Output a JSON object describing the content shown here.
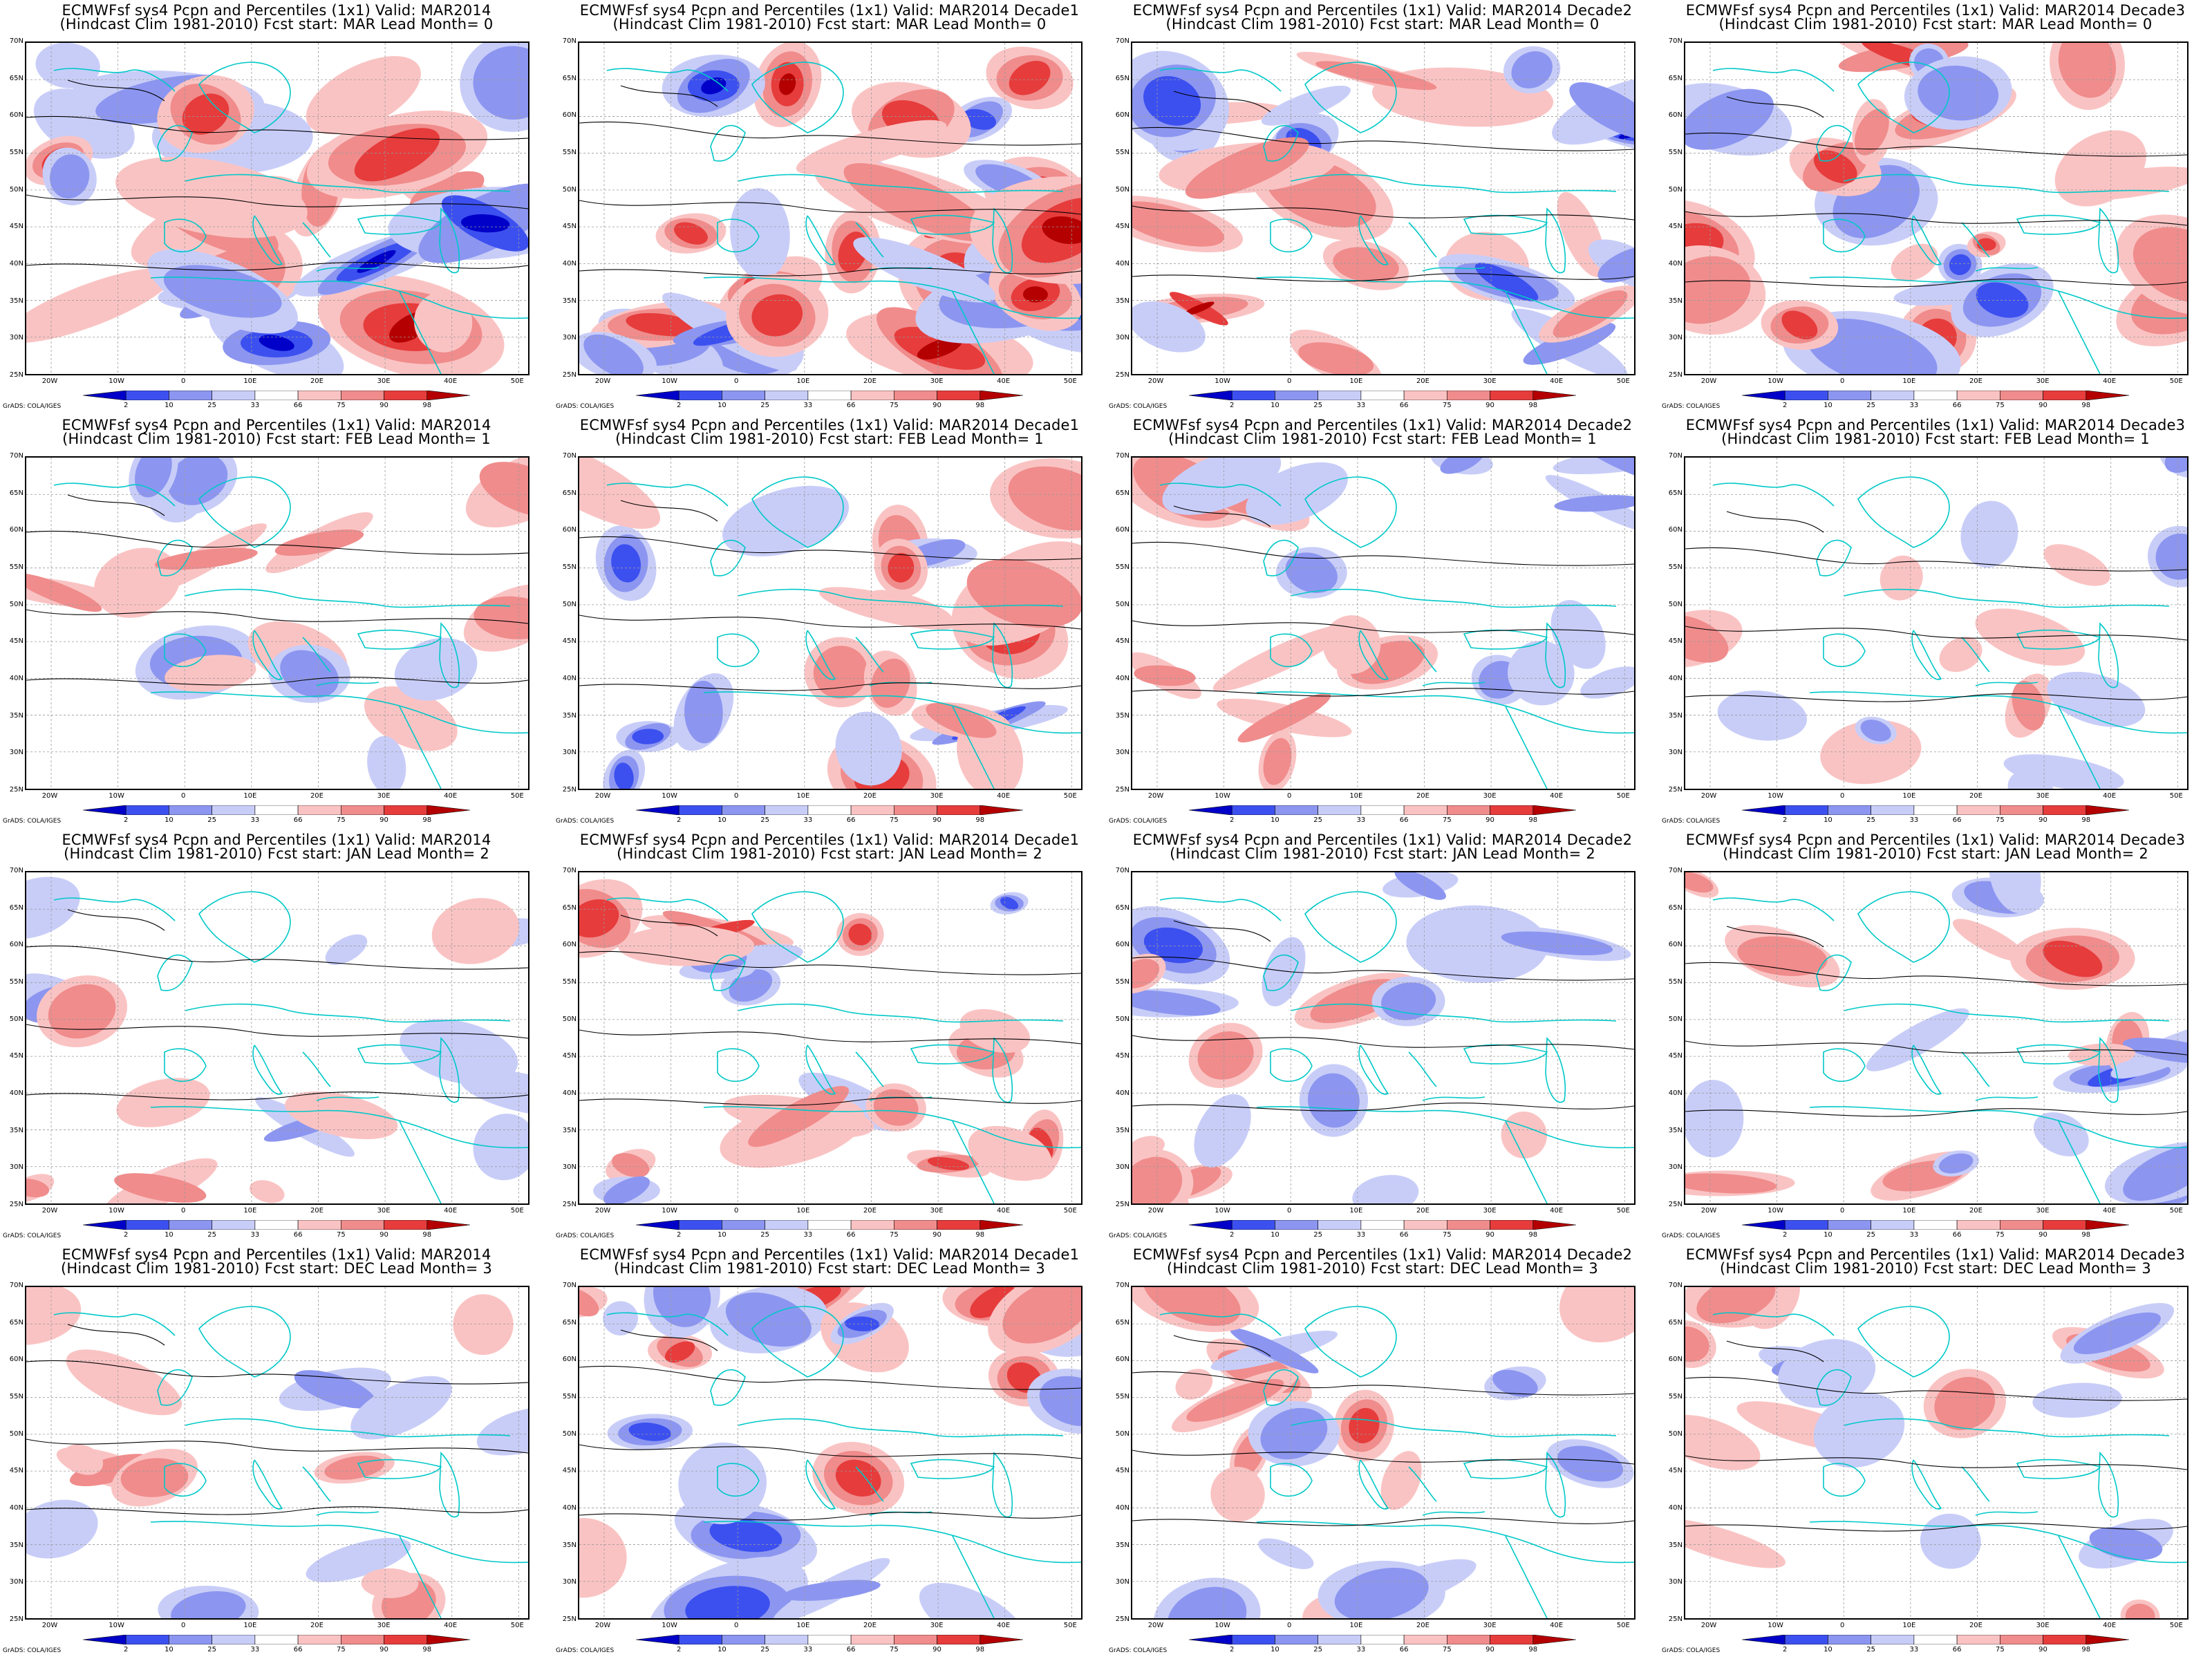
{
  "layout_rows": 4,
  "layout_cols": 4,
  "panels": [
    {
      "title1": "ECMWFsf sys4  Pcpn and Percentiles (1x1) Valid: MAR2014",
      "title2": "(Hindcast Clim 1981-2010) Fcst start: MAR   Lead Month= 0"
    },
    {
      "title1": "ECMWFsf sys4  Pcpn and Percentiles (1x1) Valid: MAR2014 Decade1",
      "title2": "(Hindcast Clim 1981-2010) Fcst start: MAR   Lead Month= 0"
    },
    {
      "title1": "ECMWFsf sys4  Pcpn and Percentiles (1x1) Valid: MAR2014 Decade2",
      "title2": "(Hindcast Clim 1981-2010) Fcst start: MAR   Lead Month= 0"
    },
    {
      "title1": "ECMWFsf sys4  Pcpn and Percentiles (1x1) Valid: MAR2014 Decade3",
      "title2": "(Hindcast Clim 1981-2010) Fcst start: MAR   Lead Month= 0"
    },
    {
      "title1": "ECMWFsf sys4  Pcpn and Percentiles (1x1) Valid: MAR2014",
      "title2": "(Hindcast Clim 1981-2010) Fcst start: FEB   Lead Month= 1"
    },
    {
      "title1": "ECMWFsf sys4  Pcpn and Percentiles (1x1) Valid: MAR2014 Decade1",
      "title2": "(Hindcast Clim 1981-2010) Fcst start: FEB   Lead Month= 1"
    },
    {
      "title1": "ECMWFsf sys4  Pcpn and Percentiles (1x1) Valid: MAR2014 Decade2",
      "title2": "(Hindcast Clim 1981-2010) Fcst start: FEB   Lead Month= 1"
    },
    {
      "title1": "ECMWFsf sys4  Pcpn and Percentiles (1x1) Valid: MAR2014 Decade3",
      "title2": "(Hindcast Clim 1981-2010) Fcst start: FEB   Lead Month= 1"
    },
    {
      "title1": "ECMWFsf sys4  Pcpn and Percentiles (1x1) Valid: MAR2014",
      "title2": "(Hindcast Clim 1981-2010) Fcst start: JAN   Lead Month= 2"
    },
    {
      "title1": "ECMWFsf sys4  Pcpn and Percentiles (1x1) Valid: MAR2014 Decade1",
      "title2": "(Hindcast Clim 1981-2010) Fcst start: JAN   Lead Month= 2"
    },
    {
      "title1": "ECMWFsf sys4  Pcpn and Percentiles (1x1) Valid: MAR2014 Decade2",
      "title2": "(Hindcast Clim 1981-2010) Fcst start: JAN   Lead Month= 2"
    },
    {
      "title1": "ECMWFsf sys4  Pcpn and Percentiles (1x1) Valid: MAR2014 Decade3",
      "title2": "(Hindcast Clim 1981-2010) Fcst start: JAN   Lead Month= 2"
    },
    {
      "title1": "ECMWFsf sys4  Pcpn and Percentiles (1x1) Valid: MAR2014",
      "title2": "(Hindcast Clim 1981-2010) Fcst start: DEC   Lead Month= 3"
    },
    {
      "title1": "ECMWFsf sys4  Pcpn and Percentiles (1x1) Valid: MAR2014 Decade1",
      "title2": "(Hindcast Clim 1981-2010) Fcst start: DEC   Lead Month= 3"
    },
    {
      "title1": "ECMWFsf sys4  Pcpn and Percentiles (1x1) Valid: MAR2014 Decade2",
      "title2": "(Hindcast Clim 1981-2010) Fcst start: DEC   Lead Month= 3"
    },
    {
      "title1": "ECMWFsf sys4  Pcpn and Percentiles (1x1) Valid: MAR2014 Decade3",
      "title2": "(Hindcast Clim 1981-2010) Fcst start: DEC   Lead Month= 3"
    }
  ],
  "lat_labels": [
    "70N",
    "65N",
    "60N",
    "55N",
    "50N",
    "45N",
    "40N",
    "35N",
    "30N",
    "25N"
  ],
  "lon_labels": [
    "20W",
    "10W",
    "0",
    "10E",
    "20E",
    "30E",
    "40E",
    "50E"
  ],
  "colorbar": {
    "labels": [
      "2",
      "10",
      "25",
      "33",
      "66",
      "75",
      "90",
      "98"
    ],
    "colors": [
      "#0000c8",
      "#3c50f0",
      "#8c96f0",
      "#c8cdf8",
      "#ffffff",
      "#fac3c3",
      "#f08c8c",
      "#e63c3c",
      "#b40000"
    ]
  },
  "credit": "GrADS: COLA/IGES",
  "colors": {
    "coastline": "#00c8c8",
    "contour": "#000000",
    "grid": "#999999"
  }
}
